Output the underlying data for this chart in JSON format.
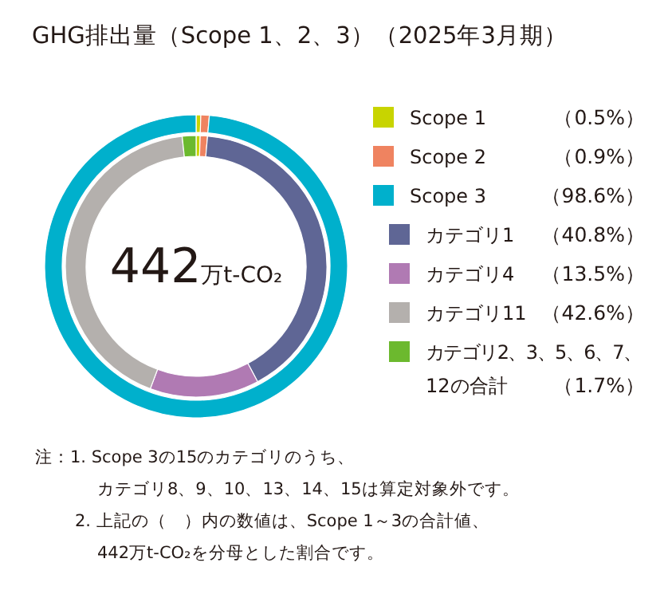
{
  "chart_data": {
    "type": "donut",
    "title": "GHG排出量（Scope 1、2、3）（2025年3月期）",
    "categories": [
      "Scope 1",
      "Scope 2",
      "Scope 3",
      "カテゴリ1",
      "カテゴリ4",
      "カテゴリ11",
      "カテゴリ2、3、5、6、7、\n12の合計"
    ],
    "colors": [
      "#c8d400",
      "#ef8360",
      "#00b0cc",
      "#5f6695",
      "#b07ab3",
      "#b4b0ad",
      "#6cb92e"
    ],
    "series": [
      {
        "values": [
          0.5,
          0.9,
          98.6,
          null,
          null,
          null,
          null
        ]
      },
      {
        "values": [
          0.5,
          0.9,
          null,
          40.8,
          13.5,
          42.6,
          1.7
        ]
      }
    ],
    "value_labels": [
      "（0.5%）",
      "（0.9%）",
      "（98.6%）",
      "（40.8%）",
      "（13.5%）",
      "（42.6%）",
      "（1.7%）"
    ],
    "legend": "right",
    "annotations": [
      "442万t-CO₂",
      "注：1. Scope 3の15のカテゴリのうち、",
      "カテゴリ8、9、10、13、14、15は算定対象外です。",
      "2. 上記の（　）内の数値は、Scope 1～3の合計値、",
      "442万t-CO₂を分母とした割合です。"
    ]
  }
}
